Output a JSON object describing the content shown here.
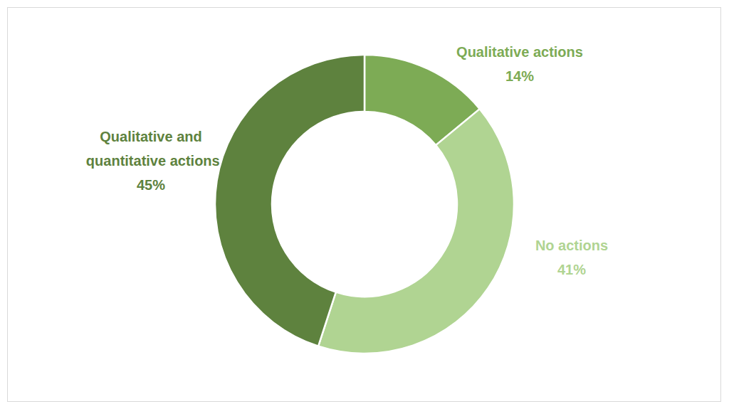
{
  "chart_data": {
    "type": "donut",
    "categories": [
      "Qualitative actions",
      "No actions",
      "Qualitative and quantitative actions"
    ],
    "values": [
      14,
      41,
      45
    ],
    "value_labels": [
      "14%",
      "41%",
      "45%"
    ],
    "colors": [
      "#7dab55",
      "#b0d492",
      "#5e823e"
    ],
    "data_labels": true
  }
}
